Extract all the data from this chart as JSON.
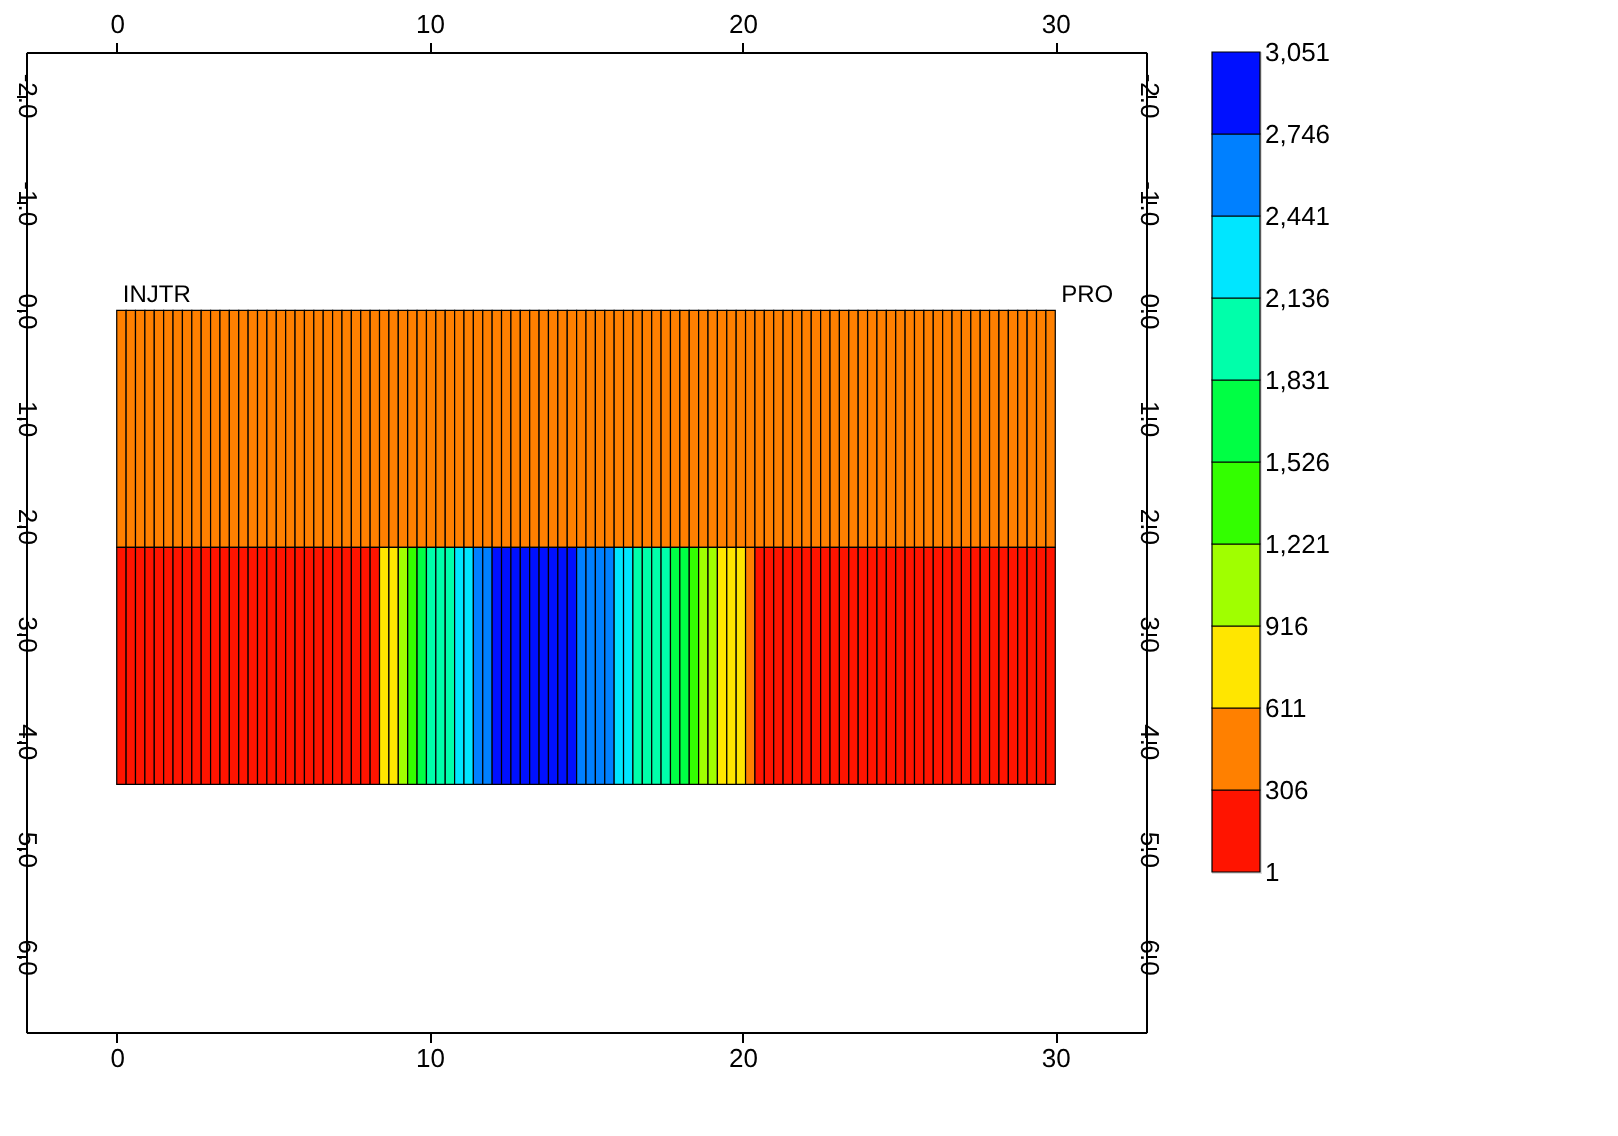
{
  "chart_data": {
    "type": "heatmap",
    "x": [
      0.15,
      0.45,
      0.75,
      1.05,
      1.35,
      1.65,
      1.95,
      2.25,
      2.55,
      2.85,
      3.15,
      3.45,
      3.75,
      4.05,
      4.35,
      4.65,
      4.95,
      5.25,
      5.55,
      5.85,
      6.15,
      6.45,
      6.75,
      7.05,
      7.35,
      7.65,
      7.95,
      8.25,
      8.55,
      8.85,
      9.15,
      9.45,
      9.75,
      10.05,
      10.35,
      10.65,
      10.95,
      11.25,
      11.55,
      11.85,
      12.15,
      12.45,
      12.75,
      13.05,
      13.35,
      13.65,
      13.95,
      14.25,
      14.55,
      14.85,
      15.15,
      15.45,
      15.75,
      16.05,
      16.35,
      16.65,
      16.95,
      17.25,
      17.55,
      17.85,
      18.15,
      18.45,
      18.75,
      19.05,
      19.35,
      19.65,
      19.95,
      20.25,
      20.55,
      20.85,
      21.15,
      21.45,
      21.75,
      22.05,
      22.35,
      22.65,
      22.95,
      23.25,
      23.55,
      23.85,
      24.15,
      24.45,
      24.75,
      25.05,
      25.35,
      25.65,
      25.95,
      26.25,
      26.55,
      26.85,
      27.15,
      27.45,
      27.75,
      28.05,
      28.35,
      28.65,
      28.95,
      29.25,
      29.55,
      29.85
    ],
    "y": [
      1.1,
      3.3
    ],
    "cells": [
      [
        460,
        460,
        460,
        460,
        460,
        460,
        460,
        460,
        460,
        460,
        460,
        460,
        460,
        460,
        460,
        460,
        460,
        460,
        460,
        460,
        460,
        460,
        460,
        460,
        460,
        460,
        460,
        460,
        460,
        460,
        460,
        460,
        460,
        460,
        460,
        460,
        460,
        460,
        460,
        460,
        460,
        460,
        460,
        460,
        460,
        460,
        460,
        460,
        460,
        460,
        460,
        460,
        460,
        460,
        460,
        460,
        460,
        460,
        460,
        460,
        460,
        460,
        460,
        460,
        460,
        460,
        460,
        460,
        460,
        460,
        460,
        460,
        460,
        460,
        460,
        460,
        460,
        460,
        460,
        460,
        460,
        460,
        460,
        460,
        460,
        460,
        460,
        460,
        460,
        460,
        460,
        460,
        460,
        460,
        460,
        460,
        460,
        460,
        460,
        460
      ],
      [
        150,
        150,
        150,
        150,
        150,
        150,
        150,
        150,
        150,
        150,
        150,
        150,
        150,
        150,
        150,
        150,
        150,
        150,
        150,
        150,
        150,
        150,
        150,
        150,
        150,
        150,
        150,
        150,
        760,
        760,
        1070,
        1370,
        1680,
        1980,
        1980,
        1980,
        2290,
        2290,
        2590,
        2590,
        2900,
        2900,
        2900,
        2900,
        2900,
        2900,
        2900,
        2900,
        2900,
        2590,
        2590,
        2590,
        2590,
        2290,
        2290,
        1980,
        1980,
        1980,
        1980,
        1680,
        1680,
        1370,
        1070,
        1070,
        760,
        760,
        760,
        460,
        150,
        150,
        150,
        150,
        150,
        150,
        150,
        150,
        150,
        150,
        150,
        150,
        150,
        150,
        150,
        150,
        150,
        150,
        150,
        150,
        150,
        150,
        150,
        150,
        150,
        150,
        150,
        150,
        150,
        150,
        150,
        150
      ]
    ],
    "clim": [
      1,
      3051
    ],
    "cticks": [
      1,
      306,
      611,
      916,
      {
        "value": 1221,
        "label": "1,221"
      },
      {
        "value": 1526,
        "label": "1,526"
      },
      {
        "value": 1831,
        "label": "1,831"
      },
      {
        "value": 2136,
        "label": "2,136"
      },
      {
        "value": 2441,
        "label": "2,441"
      },
      {
        "value": 2746,
        "label": "2,746"
      },
      {
        "value": 3051,
        "label": "3,051"
      }
    ],
    "colors": [
      "#ff1400",
      "#ff8000",
      "#ffe600",
      "#a0ff00",
      "#33ff00",
      "#00ff44",
      "#00ffaa",
      "#00e6ff",
      "#0080ff",
      "#0010ff"
    ],
    "xlim": [
      -2.9,
      32.9
    ],
    "xticks": [
      0,
      10,
      20,
      30
    ],
    "x2lim": [
      -2.9,
      32.9
    ],
    "x2ticks": [
      0,
      10,
      20,
      30
    ],
    "ylim": [
      6.7,
      -2.4
    ],
    "yticks": [
      {
        "value": -2,
        "label": "-2.0"
      },
      {
        "value": -1,
        "label": "-1.0"
      },
      {
        "value": 0,
        "label": "0.0"
      },
      {
        "value": 1,
        "label": "1.0"
      },
      {
        "value": 2,
        "label": "2.0"
      },
      {
        "value": 3,
        "label": "3.0"
      },
      {
        "value": 4,
        "label": "4.0"
      },
      {
        "value": 5,
        "label": "5.0"
      },
      {
        "value": 6,
        "label": "6.0"
      }
    ],
    "y2lim": [
      6.7,
      -2.4
    ],
    "y2ticks": [
      {
        "value": -2,
        "label": "-2.0"
      },
      {
        "value": -1,
        "label": "-1.0"
      },
      {
        "value": 0,
        "label": "0.0"
      },
      {
        "value": 1,
        "label": "1.0"
      },
      {
        "value": 2,
        "label": "2.0"
      },
      {
        "value": 3,
        "label": "3.0"
      },
      {
        "value": 4,
        "label": "4.0"
      },
      {
        "value": 5,
        "label": "5.0"
      },
      {
        "value": 6,
        "label": "6.0"
      }
    ],
    "annotations": [
      "INJTR",
      "PRO"
    ],
    "grid": false
  }
}
